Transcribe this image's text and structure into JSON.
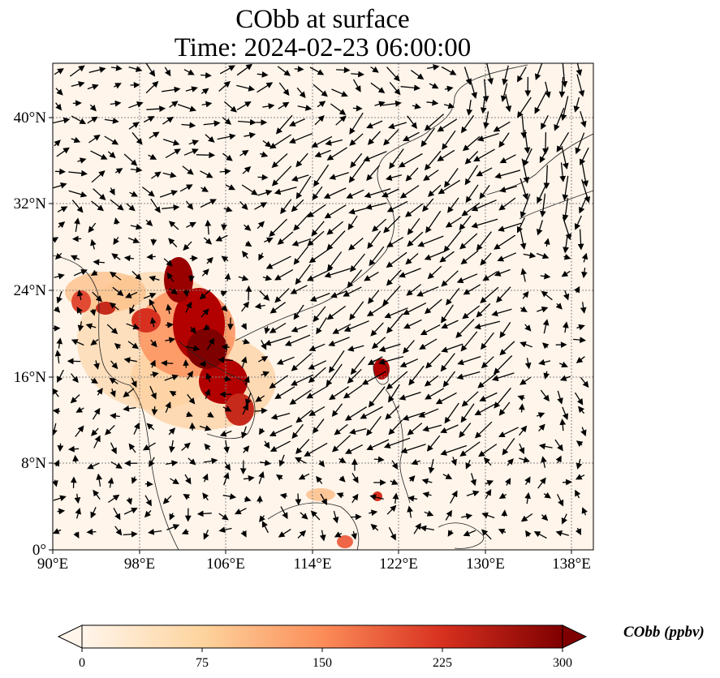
{
  "title": {
    "line1": "CObb at surface",
    "line2": "Time: 2024-02-23 06:00:00"
  },
  "map": {
    "lon_ticks": [
      "90°E",
      "98°E",
      "106°E",
      "114°E",
      "122°E",
      "130°E",
      "138°E"
    ],
    "lat_ticks": [
      "0°",
      "8°N",
      "16°N",
      "24°N",
      "32°N",
      "40°N"
    ],
    "lon_range": [
      90,
      140
    ],
    "lat_range": [
      0,
      45
    ],
    "grid": "dotted",
    "field_color_low": "#fff5eb",
    "field_color_high": "#7f0000",
    "vector_color": "#000000"
  },
  "colorbar": {
    "ticks": [
      "0",
      "75",
      "150",
      "225",
      "300"
    ],
    "label": "CObb (ppbv)",
    "colormap": "OrRd",
    "range": [
      0,
      300
    ],
    "extend": "both"
  }
}
